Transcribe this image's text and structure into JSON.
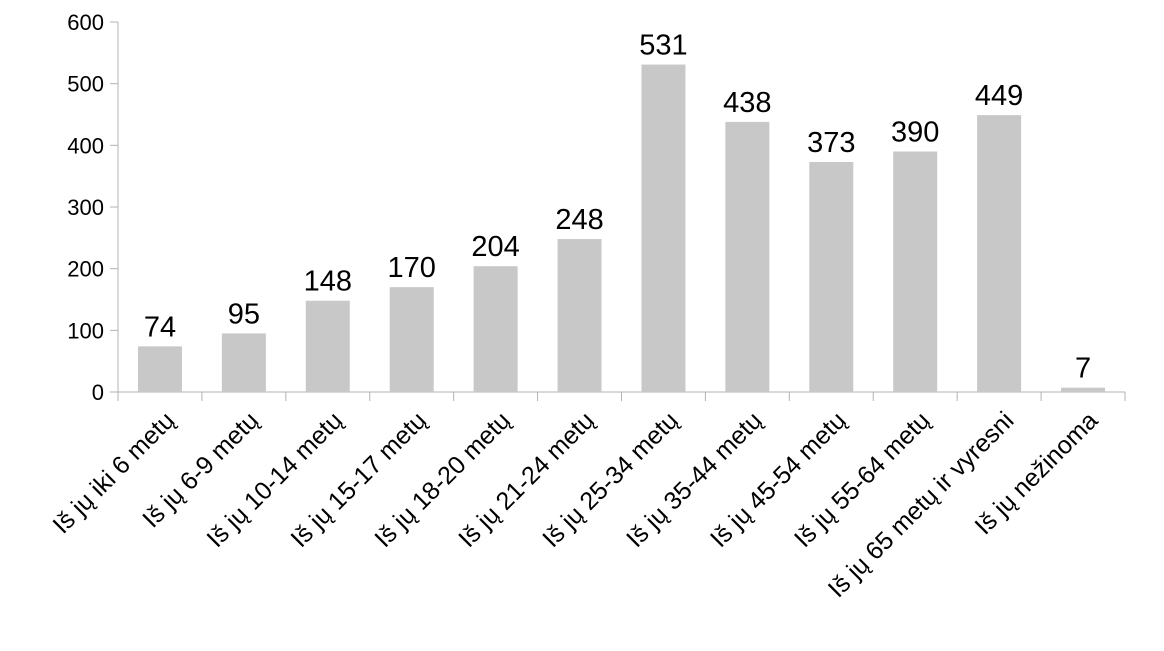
{
  "chart_data": {
    "type": "bar",
    "categories": [
      "Iš jų iki 6 metų",
      "Iš jų 6-9 metų",
      "Iš jų 10-14 metų",
      "Iš jų 15-17 metų",
      "Iš jų 18-20 metų",
      "Iš jų 21-24 metų",
      "Iš jų 25-34 metų",
      "Iš jų 35-44 metų",
      "Iš jų 45-54 metų",
      "Iš jų 55-64 metų",
      "Iš jų 65 metų ir vyresni",
      "Iš jų nežinoma"
    ],
    "values": [
      74,
      95,
      148,
      170,
      204,
      248,
      531,
      438,
      373,
      390,
      449,
      7
    ],
    "ylim": [
      0,
      600
    ],
    "yticks": [
      0,
      100,
      200,
      300,
      400,
      500,
      600
    ],
    "grid": false,
    "data_labels": true,
    "colors": {
      "bar": "#c8c8c8",
      "axis": "#b3b3b3",
      "text": "#000000"
    }
  }
}
